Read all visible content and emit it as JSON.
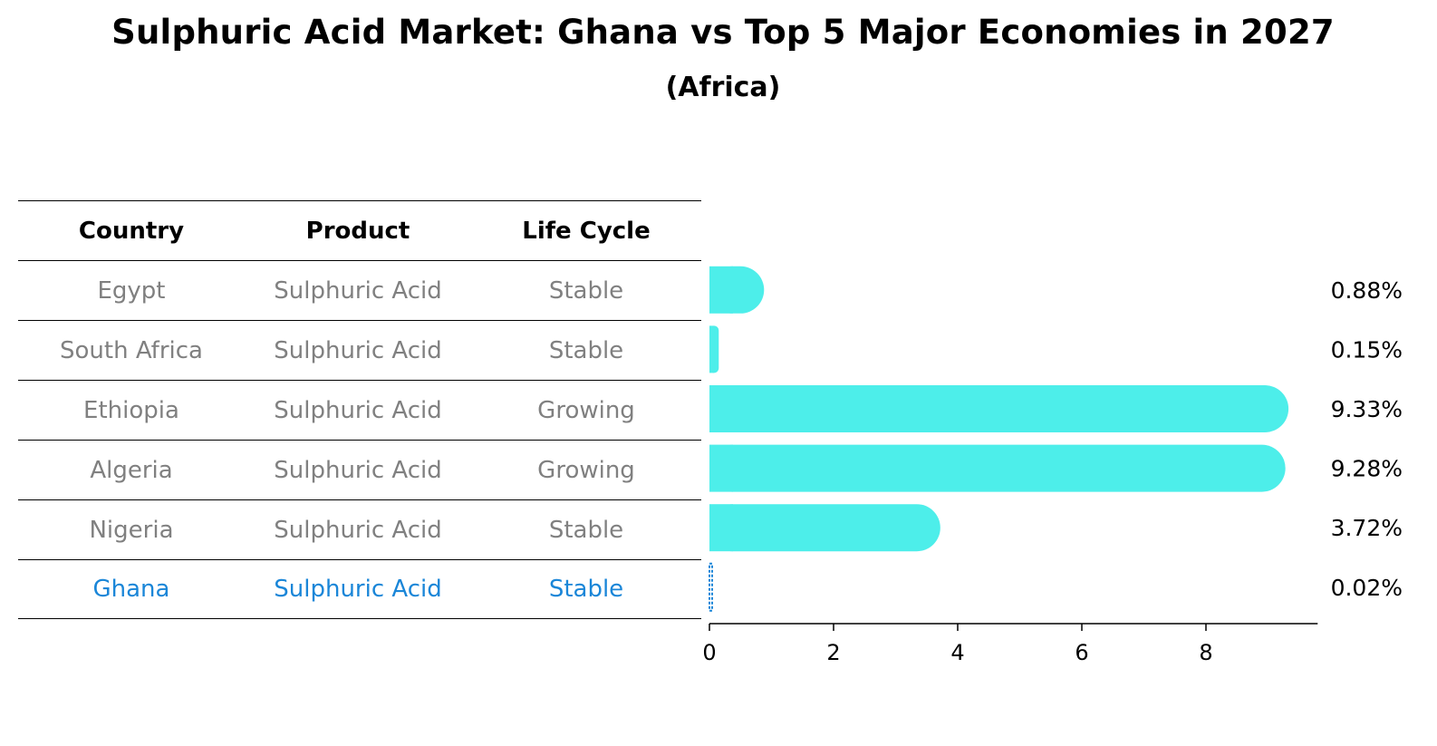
{
  "title": "Sulphuric Acid Market: Ghana vs Top 5 Major Economies in 2027",
  "subtitle": "(Africa)",
  "table": {
    "headers": [
      "Country",
      "Product",
      "Life Cycle"
    ],
    "rows": [
      {
        "country": "Egypt",
        "product": "Sulphuric Acid",
        "life_cycle": "Stable"
      },
      {
        "country": "South Africa",
        "product": "Sulphuric Acid",
        "life_cycle": "Stable"
      },
      {
        "country": "Ethiopia",
        "product": "Sulphuric Acid",
        "life_cycle": "Growing"
      },
      {
        "country": "Algeria",
        "product": "Sulphuric Acid",
        "life_cycle": "Growing"
      },
      {
        "country": "Nigeria",
        "product": "Sulphuric Acid",
        "life_cycle": "Stable"
      },
      {
        "country": "Ghana",
        "product": "Sulphuric Acid",
        "life_cycle": "Stable"
      }
    ],
    "highlight_country": "Ghana"
  },
  "colors": {
    "bar": "#4deeea",
    "highlight": "#1a86d8",
    "muted_text": "#808080"
  },
  "chart_data": {
    "type": "bar",
    "orientation": "horizontal",
    "categories": [
      "Egypt",
      "South Africa",
      "Ethiopia",
      "Algeria",
      "Nigeria",
      "Ghana"
    ],
    "values": [
      0.88,
      0.15,
      9.33,
      9.28,
      3.72,
      0.02
    ],
    "value_labels": [
      "0.88%",
      "0.15%",
      "9.33%",
      "9.28%",
      "3.72%",
      "0.02%"
    ],
    "x_ticks": [
      "0",
      "2",
      "4",
      "6",
      "8"
    ],
    "xlim": [
      0,
      9.8
    ],
    "grid": false,
    "legend": false
  }
}
